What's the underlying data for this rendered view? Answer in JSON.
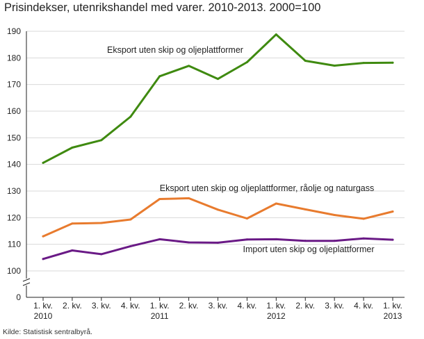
{
  "title": "Prisindekser, utenrikshandel med varer. 2010-2013. 2000=100",
  "source": "Kilde: Statistisk sentralbyrå.",
  "chart_data": {
    "type": "line",
    "title": "Prisindekser, utenrikshandel med varer. 2010-2013. 2000=100",
    "xlabel": "",
    "ylabel": "",
    "categories": [
      [
        "1. kv.",
        "2010"
      ],
      [
        "2. kv.",
        ""
      ],
      [
        "3. kv.",
        ""
      ],
      [
        "4. kv.",
        ""
      ],
      [
        "1. kv.",
        "2011"
      ],
      [
        "2. kv.",
        ""
      ],
      [
        "3. kv.",
        ""
      ],
      [
        "4. kv.",
        ""
      ],
      [
        "1. kv.",
        "2012"
      ],
      [
        "2. kv.",
        ""
      ],
      [
        "3. kv.",
        ""
      ],
      [
        "4. kv.",
        ""
      ],
      [
        "1. kv.",
        "2013"
      ]
    ],
    "yticks": [
      0,
      100,
      110,
      120,
      130,
      140,
      150,
      160,
      170,
      180,
      190
    ],
    "ylim": [
      95,
      190
    ],
    "axis_break": true,
    "grid": true,
    "series": [
      {
        "name": "Eksport uten skip og oljeplattformer",
        "color": "#3f8a10",
        "values": [
          140.6,
          146.3,
          149.1,
          157.9,
          173.1,
          177.0,
          172.1,
          178.4,
          188.8,
          178.9,
          177.1,
          178.1,
          178.2
        ]
      },
      {
        "name": "Eksport uten skip og oljeplattformer, råolje og naturgass",
        "color": "#e87b2e",
        "values": [
          113.0,
          117.8,
          118.0,
          119.3,
          127.0,
          127.3,
          123.0,
          119.7,
          125.3,
          123.1,
          121.0,
          119.6,
          122.3
        ]
      },
      {
        "name": "Import uten skip og oljeplattformer",
        "color": "#6a1a86",
        "values": [
          104.5,
          107.7,
          106.3,
          109.3,
          111.9,
          110.7,
          110.6,
          111.8,
          111.9,
          111.3,
          111.3,
          112.2,
          111.7
        ]
      }
    ]
  }
}
